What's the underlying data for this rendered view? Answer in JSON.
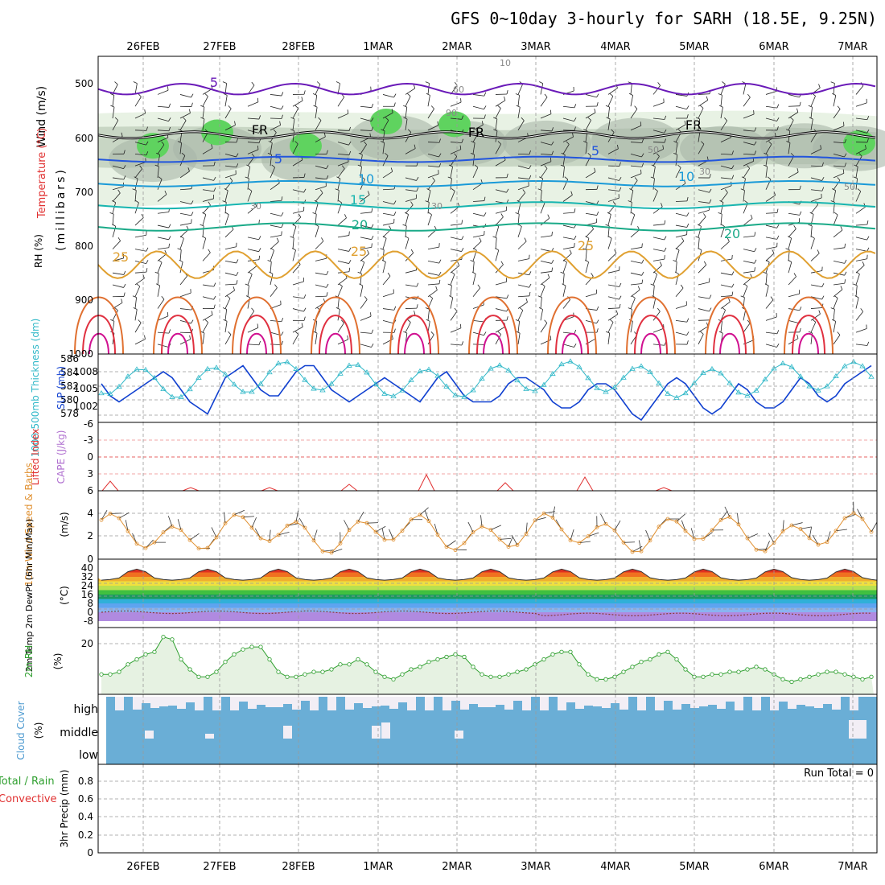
{
  "title": "GFS 0~10day 3-hourly for SARH (18.5E, 9.25N)",
  "dates": [
    "26FEB",
    "27FEB",
    "28FEB",
    "1MAR",
    "2MAR",
    "3MAR",
    "4MAR",
    "5MAR",
    "6MAR",
    "7MAR"
  ],
  "colors": {
    "rh_fill_light": "#e8f2e4",
    "rh_fill_mid": "#c8d6c4",
    "rh_fill_dark": "#a9b6a8",
    "rh_fill_green": "#5fd35f",
    "temp_5": "#6a1ab8",
    "temp_m5": "#2255dd",
    "temp_10": "#1a9ad8",
    "temp_15": "#17b5b0",
    "temp_20": "#1aaa88",
    "temp_25": "#e0a030",
    "temp_30": "#e07030",
    "temp_35": "#e03040",
    "temp_40": "#d01090",
    "slp": "#1040d0",
    "thickness": "#30b8c8",
    "lifted": "#e03030",
    "cape": "#b070d0",
    "wind10m": "#e09030",
    "rh2m": "#30a030",
    "cloud": "#6aaed6",
    "cloud_clear": "#f2eef5",
    "precip_total": "#30a030",
    "precip_conv": "#e03030"
  },
  "panels": {
    "upper": {
      "ylabel_rh": "RH (%)",
      "ylabel_temp": "Temperature (°C)",
      "ylabel_wind": "Wind (m/s)",
      "ylabel_units": "(millibars)",
      "yticks": [
        "500",
        "600",
        "700",
        "800",
        "900",
        "1000"
      ],
      "contour_labels": [
        {
          "text": "5",
          "color": "#6a1ab8"
        },
        {
          "text": "5",
          "color": "#2255dd"
        },
        {
          "text": "5",
          "color": "#2255dd"
        },
        {
          "text": "10",
          "color": "#1a9ad8"
        },
        {
          "text": "10",
          "color": "#1a9ad8"
        },
        {
          "text": "15",
          "color": "#17b5b0"
        },
        {
          "text": "20",
          "color": "#1aaa88"
        },
        {
          "text": "20",
          "color": "#1aaa88"
        },
        {
          "text": "25",
          "color": "#e0a030"
        },
        {
          "text": "25",
          "color": "#e0a030"
        },
        {
          "text": "25",
          "color": "#e0a030"
        },
        {
          "text": "FR",
          "color": "#000"
        },
        {
          "text": "FR",
          "color": "#000"
        },
        {
          "text": "FR",
          "color": "#000"
        },
        {
          "text": "10",
          "color": "#888"
        },
        {
          "text": "30",
          "color": "#888"
        },
        {
          "text": "30",
          "color": "#888"
        },
        {
          "text": "50",
          "color": "#888"
        },
        {
          "text": "50",
          "color": "#888"
        },
        {
          "text": "30",
          "color": "#888"
        },
        {
          "text": "60",
          "color": "#888"
        },
        {
          "text": "90",
          "color": "#888"
        }
      ]
    },
    "slp": {
      "ylabel_left": "1000-500mb Thickness (dm)",
      "ylabel_right": "SLP (mb)",
      "left_ticks": [
        "586",
        "584",
        "582",
        "580",
        "578"
      ],
      "right_ticks": [
        "1008",
        "1005",
        "1002"
      ]
    },
    "cape": {
      "ylabel_left": "Lifted Index",
      "ylabel_right": "CAPE (J/kg)",
      "ticks": [
        "-6",
        "-3",
        "0",
        "3",
        "6"
      ]
    },
    "wind10": {
      "ylabel": "10m Wind Speed & Barbs",
      "units": "(m/s)",
      "ticks": [
        "4",
        "2",
        "0"
      ]
    },
    "temp2m": {
      "ylabel": "2m Temp 2m DewPt (6hr Min/Max)",
      "units": "(°C)",
      "ticks": [
        "40",
        "32",
        "24",
        "16",
        "8",
        "0",
        "-8"
      ]
    },
    "rh2m": {
      "ylabel": "2m RH",
      "units": "(%)",
      "ticks": [
        "20"
      ]
    },
    "cloud": {
      "ylabel": "Cloud Cover",
      "units": "(%)",
      "levels": [
        "high",
        "middle",
        "low"
      ]
    },
    "precip": {
      "ylabel_a": "Total / Rain",
      "ylabel_b": "Convective",
      "ylabel_c": "3hr Precip (mm)",
      "ticks": [
        "0.8",
        "0.6",
        "0.4",
        "0.2",
        "0"
      ],
      "run_total": "Run Total = 0"
    }
  },
  "chart_data": [
    {
      "type": "line",
      "name": "SLP",
      "values": [
        1006,
        1004,
        1003,
        1004,
        1005,
        1006,
        1007,
        1008,
        1007,
        1005,
        1003,
        1002,
        1001,
        1004,
        1007,
        1008,
        1009,
        1007,
        1005,
        1004,
        1004,
        1006,
        1008,
        1009,
        1009,
        1007,
        1005,
        1004,
        1003,
        1004,
        1005,
        1006,
        1007,
        1006,
        1005,
        1004,
        1003,
        1005,
        1007,
        1008,
        1006,
        1004,
        1003,
        1003,
        1003,
        1004,
        1006,
        1007,
        1007,
        1006,
        1005,
        1003,
        1002,
        1002,
        1003,
        1005,
        1006,
        1006,
        1005,
        1003,
        1001,
        1000,
        1002,
        1004,
        1006,
        1007,
        1006,
        1004,
        1002,
        1001,
        1002,
        1004,
        1006,
        1005,
        1003,
        1002,
        1002,
        1003,
        1005,
        1007,
        1006,
        1004,
        1003,
        1004,
        1006,
        1007,
        1008,
        1009
      ]
    },
    {
      "type": "line",
      "name": "2m RH",
      "values": [
        8,
        8,
        9,
        12,
        14,
        16,
        17,
        23,
        22,
        14,
        10,
        7,
        7,
        9,
        13,
        16,
        18,
        19,
        19,
        14,
        9,
        7,
        7,
        8,
        9,
        9,
        10,
        12,
        12,
        14,
        12,
        9,
        7,
        6,
        8,
        10,
        11,
        13,
        14,
        15,
        16,
        15,
        11,
        8,
        7,
        7,
        8,
        9,
        10,
        12,
        14,
        16,
        17,
        17,
        12,
        8,
        6,
        6,
        7,
        9,
        11,
        13,
        14,
        16,
        17,
        14,
        10,
        7,
        7,
        8,
        8,
        9,
        9,
        10,
        11,
        10,
        8,
        6,
        5,
        6,
        7,
        8,
        9,
        9,
        8,
        7,
        6,
        7,
        8,
        9,
        10,
        11,
        10,
        8,
        9,
        10,
        11,
        13
      ]
    }
  ]
}
